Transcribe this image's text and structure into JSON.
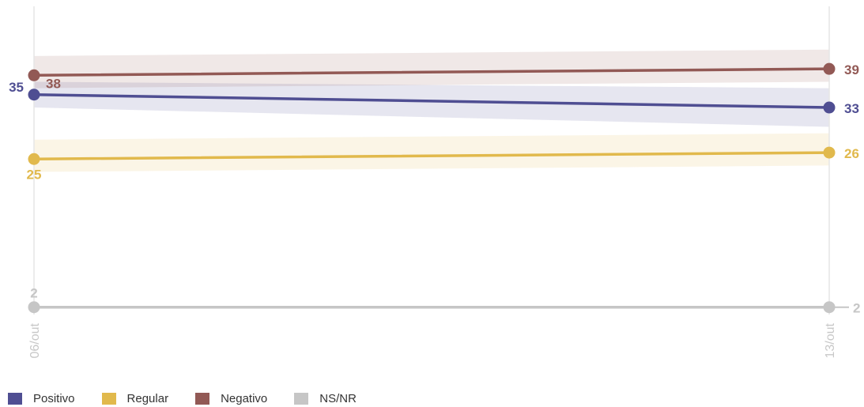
{
  "chart_data": {
    "type": "line",
    "categories": [
      "06/out",
      "13/out"
    ],
    "ylim": [
      0,
      45
    ],
    "grid": false,
    "legend_placement": "bottom-left",
    "series": [
      {
        "name": "Positivo",
        "key": "positivo",
        "color": "#4F4E92",
        "values": [
          35,
          33
        ],
        "band": [
          [
            33,
            37
          ],
          [
            30,
            36
          ]
        ],
        "value_labels": [
          "35",
          "33"
        ]
      },
      {
        "name": "Regular",
        "key": "regular",
        "color": "#E1B94C",
        "values": [
          25,
          26
        ],
        "band": [
          [
            23,
            28
          ],
          [
            24,
            29
          ]
        ],
        "value_labels": [
          "25",
          "26"
        ]
      },
      {
        "name": "Negativo",
        "key": "negativo",
        "color": "#925955",
        "values": [
          38,
          39
        ],
        "band": [
          [
            36,
            41
          ],
          [
            37,
            42
          ]
        ],
        "value_labels": [
          "38",
          "39"
        ]
      },
      {
        "name": "NS/NR",
        "key": "nsnr",
        "color": "#C6C6C6",
        "values": [
          2,
          2
        ],
        "band": null,
        "value_labels": [
          "2",
          "2"
        ]
      }
    ]
  },
  "legend": {
    "items": [
      {
        "label": "Positivo",
        "color": "#4F4E92"
      },
      {
        "label": "Regular",
        "color": "#E1B94C"
      },
      {
        "label": "Negativo",
        "color": "#925955"
      },
      {
        "label": "NS/NR",
        "color": "#C6C6C6"
      }
    ]
  }
}
